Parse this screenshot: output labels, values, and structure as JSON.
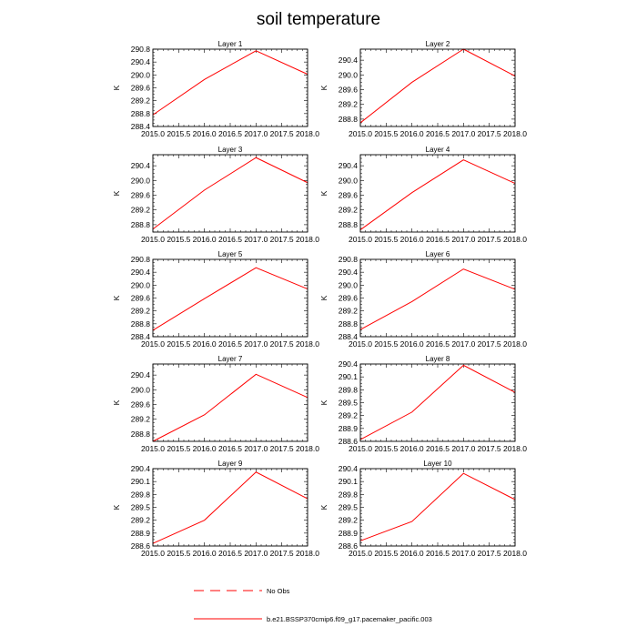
{
  "title": "soil temperature",
  "legend": {
    "obs_label": "No Obs",
    "obs_color": "#ff0000",
    "model_label": "b.e21.BSSP370cmip6.f09_g17.pacemaker_pacific.003",
    "model_color": "#ff0000"
  },
  "chart_data": [
    {
      "type": "line",
      "title": "Layer 1",
      "xlabel": "",
      "ylabel": "K",
      "x": [
        2015.0,
        2016.0,
        2017.0,
        2018.0
      ],
      "xlim": [
        2015.0,
        2018.0
      ],
      "xticks": [
        "2015.0",
        "2015.5",
        "2016.0",
        "2016.5",
        "2017.0",
        "2017.5",
        "2018.0"
      ],
      "ylim": [
        288.4,
        290.8
      ],
      "yticks": [
        "288.4",
        "288.8",
        "289.2",
        "289.6",
        "290.0",
        "290.4",
        "290.8"
      ],
      "series": [
        {
          "name": "b.e21.BSSP370cmip6.f09_g17.pacemaker_pacific.003",
          "values": [
            288.76,
            289.86,
            290.75,
            290.02
          ]
        }
      ]
    },
    {
      "type": "line",
      "title": "Layer 2",
      "xlabel": "",
      "ylabel": "K",
      "x": [
        2015.0,
        2016.0,
        2017.0,
        2018.0
      ],
      "xlim": [
        2015.0,
        2018.0
      ],
      "xticks": [
        "2015.0",
        "2015.5",
        "2016.0",
        "2016.5",
        "2017.0",
        "2017.5",
        "2018.0"
      ],
      "ylim": [
        288.6,
        290.7
      ],
      "yticks": [
        "288.8",
        "289.2",
        "289.6",
        "290.0",
        "290.4"
      ],
      "series": [
        {
          "name": "b.e21.BSSP370cmip6.f09_g17.pacemaker_pacific.003",
          "values": [
            288.7,
            289.8,
            290.7,
            289.97
          ]
        }
      ]
    },
    {
      "type": "line",
      "title": "Layer 3",
      "xlabel": "",
      "ylabel": "K",
      "x": [
        2015.0,
        2016.0,
        2017.0,
        2018.0
      ],
      "xlim": [
        2015.0,
        2018.0
      ],
      "xticks": [
        "2015.0",
        "2015.5",
        "2016.0",
        "2016.5",
        "2017.0",
        "2017.5",
        "2018.0"
      ],
      "ylim": [
        288.6,
        290.7
      ],
      "yticks": [
        "288.8",
        "289.2",
        "289.6",
        "290.0",
        "290.4"
      ],
      "series": [
        {
          "name": "b.e21.BSSP370cmip6.f09_g17.pacemaker_pacific.003",
          "values": [
            288.68,
            289.74,
            290.62,
            289.94
          ]
        }
      ]
    },
    {
      "type": "line",
      "title": "Layer 4",
      "xlabel": "",
      "ylabel": "K",
      "x": [
        2015.0,
        2016.0,
        2017.0,
        2018.0
      ],
      "xlim": [
        2015.0,
        2018.0
      ],
      "xticks": [
        "2015.0",
        "2015.5",
        "2016.0",
        "2016.5",
        "2017.0",
        "2017.5",
        "2018.0"
      ],
      "ylim": [
        288.6,
        290.7
      ],
      "yticks": [
        "288.8",
        "289.2",
        "289.6",
        "290.0",
        "290.4"
      ],
      "series": [
        {
          "name": "b.e21.BSSP370cmip6.f09_g17.pacemaker_pacific.003",
          "values": [
            288.66,
            289.67,
            290.56,
            289.92
          ]
        }
      ]
    },
    {
      "type": "line",
      "title": "Layer 5",
      "xlabel": "",
      "ylabel": "K",
      "x": [
        2015.0,
        2016.0,
        2017.0,
        2018.0
      ],
      "xlim": [
        2015.0,
        2018.0
      ],
      "xticks": [
        "2015.0",
        "2015.5",
        "2016.0",
        "2016.5",
        "2017.0",
        "2017.5",
        "2018.0"
      ],
      "ylim": [
        288.4,
        290.8
      ],
      "yticks": [
        "288.4",
        "288.8",
        "289.2",
        "289.6",
        "290.0",
        "290.4",
        "290.8"
      ],
      "series": [
        {
          "name": "b.e21.BSSP370cmip6.f09_g17.pacemaker_pacific.003",
          "values": [
            288.6,
            289.58,
            290.54,
            289.88
          ]
        }
      ]
    },
    {
      "type": "line",
      "title": "Layer 6",
      "xlabel": "",
      "ylabel": "K",
      "x": [
        2015.0,
        2016.0,
        2017.0,
        2018.0
      ],
      "xlim": [
        2015.0,
        2018.0
      ],
      "xticks": [
        "2015.0",
        "2015.5",
        "2016.0",
        "2016.5",
        "2017.0",
        "2017.5",
        "2018.0"
      ],
      "ylim": [
        288.4,
        290.8
      ],
      "yticks": [
        "288.4",
        "288.8",
        "289.2",
        "289.6",
        "290.0",
        "290.4",
        "290.8"
      ],
      "series": [
        {
          "name": "b.e21.BSSP370cmip6.f09_g17.pacemaker_pacific.003",
          "values": [
            288.62,
            289.49,
            290.5,
            289.87
          ]
        }
      ]
    },
    {
      "type": "line",
      "title": "Layer 7",
      "xlabel": "",
      "ylabel": "K",
      "x": [
        2015.0,
        2016.0,
        2017.0,
        2018.0
      ],
      "xlim": [
        2015.0,
        2018.0
      ],
      "xticks": [
        "2015.0",
        "2015.5",
        "2016.0",
        "2016.5",
        "2017.0",
        "2017.5",
        "2018.0"
      ],
      "ylim": [
        288.6,
        290.7
      ],
      "yticks": [
        "288.8",
        "289.2",
        "289.6",
        "290.0",
        "290.4"
      ],
      "series": [
        {
          "name": "b.e21.BSSP370cmip6.f09_g17.pacemaker_pacific.003",
          "values": [
            288.6,
            289.32,
            290.42,
            289.79
          ]
        }
      ]
    },
    {
      "type": "line",
      "title": "Layer 8",
      "xlabel": "",
      "ylabel": "K",
      "x": [
        2015.0,
        2016.0,
        2017.0,
        2018.0
      ],
      "xlim": [
        2015.0,
        2018.0
      ],
      "xticks": [
        "2015.0",
        "2015.5",
        "2016.0",
        "2016.5",
        "2017.0",
        "2017.5",
        "2018.0"
      ],
      "ylim": [
        288.6,
        290.4
      ],
      "yticks": [
        "288.6",
        "288.9",
        "289.2",
        "289.5",
        "289.8",
        "290.1",
        "290.4"
      ],
      "series": [
        {
          "name": "b.e21.BSSP370cmip6.f09_g17.pacemaker_pacific.003",
          "values": [
            288.64,
            289.28,
            290.37,
            289.74
          ]
        }
      ]
    },
    {
      "type": "line",
      "title": "Layer 9",
      "xlabel": "",
      "ylabel": "K",
      "x": [
        2015.0,
        2016.0,
        2017.0,
        2018.0
      ],
      "xlim": [
        2015.0,
        2018.0
      ],
      "xticks": [
        "2015.0",
        "2015.5",
        "2016.0",
        "2016.5",
        "2017.0",
        "2017.5",
        "2018.0"
      ],
      "ylim": [
        288.6,
        290.4
      ],
      "yticks": [
        "288.6",
        "288.9",
        "289.2",
        "289.5",
        "289.8",
        "290.1",
        "290.4"
      ],
      "series": [
        {
          "name": "b.e21.BSSP370cmip6.f09_g17.pacemaker_pacific.003",
          "values": [
            288.66,
            289.2,
            290.32,
            289.7
          ]
        }
      ]
    },
    {
      "type": "line",
      "title": "Layer 10",
      "xlabel": "",
      "ylabel": "K",
      "x": [
        2015.0,
        2016.0,
        2017.0,
        2018.0
      ],
      "xlim": [
        2015.0,
        2018.0
      ],
      "xticks": [
        "2015.0",
        "2015.5",
        "2016.0",
        "2016.5",
        "2017.0",
        "2017.5",
        "2018.0"
      ],
      "ylim": [
        288.6,
        290.4
      ],
      "yticks": [
        "288.6",
        "288.9",
        "289.2",
        "289.5",
        "289.8",
        "290.1",
        "290.4"
      ],
      "series": [
        {
          "name": "b.e21.BSSP370cmip6.f09_g17.pacemaker_pacific.003",
          "values": [
            288.72,
            289.17,
            290.29,
            289.68
          ]
        }
      ]
    }
  ]
}
